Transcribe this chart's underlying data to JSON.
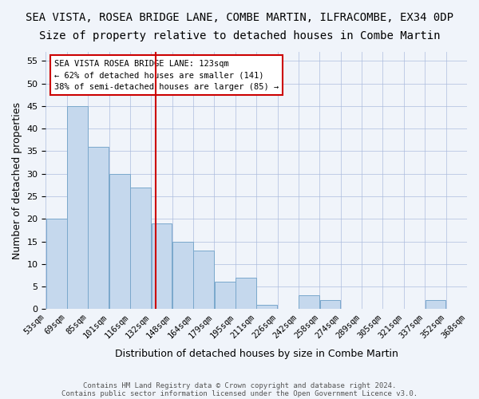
{
  "title1": "SEA VISTA, ROSEA BRIDGE LANE, COMBE MARTIN, ILFRACOMBE, EX34 0DP",
  "title2": "Size of property relative to detached houses in Combe Martin",
  "xlabel": "Distribution of detached houses by size in Combe Martin",
  "ylabel": "Number of detached properties",
  "bins": [
    "53sqm",
    "69sqm",
    "85sqm",
    "101sqm",
    "116sqm",
    "132sqm",
    "148sqm",
    "164sqm",
    "179sqm",
    "195sqm",
    "211sqm",
    "226sqm",
    "242sqm",
    "258sqm",
    "274sqm",
    "289sqm",
    "305sqm",
    "321sqm",
    "337sqm",
    "352sqm",
    "368sqm"
  ],
  "bar_values": [
    20,
    45,
    36,
    30,
    27,
    19,
    15,
    13,
    6,
    7,
    1,
    0,
    3,
    2,
    0,
    0,
    0,
    0,
    2,
    0
  ],
  "bar_color": "#c5d8ed",
  "bar_edge_color": "#7aa8cc",
  "vline_x": 4.73,
  "vline_color": "#cc0000",
  "ylim": [
    0,
    57
  ],
  "yticks": [
    0,
    5,
    10,
    15,
    20,
    25,
    30,
    35,
    40,
    45,
    50,
    55
  ],
  "annotation_lines": [
    "SEA VISTA ROSEA BRIDGE LANE: 123sqm",
    "← 62% of detached houses are smaller (141)",
    "38% of semi-detached houses are larger (85) →"
  ],
  "annotation_box_color": "#ffffff",
  "annotation_box_edge_color": "#cc0000",
  "footer1": "Contains HM Land Registry data © Crown copyright and database right 2024.",
  "footer2": "Contains public sector information licensed under the Open Government Licence v3.0.",
  "background_color": "#f0f4fa",
  "plot_background": "#f0f4fa",
  "grid_color": "#aabbdd",
  "title_fontsize": 10,
  "subtitle_fontsize": 10,
  "tick_fontsize": 7.5,
  "ylabel_fontsize": 9,
  "xlabel_fontsize": 9
}
